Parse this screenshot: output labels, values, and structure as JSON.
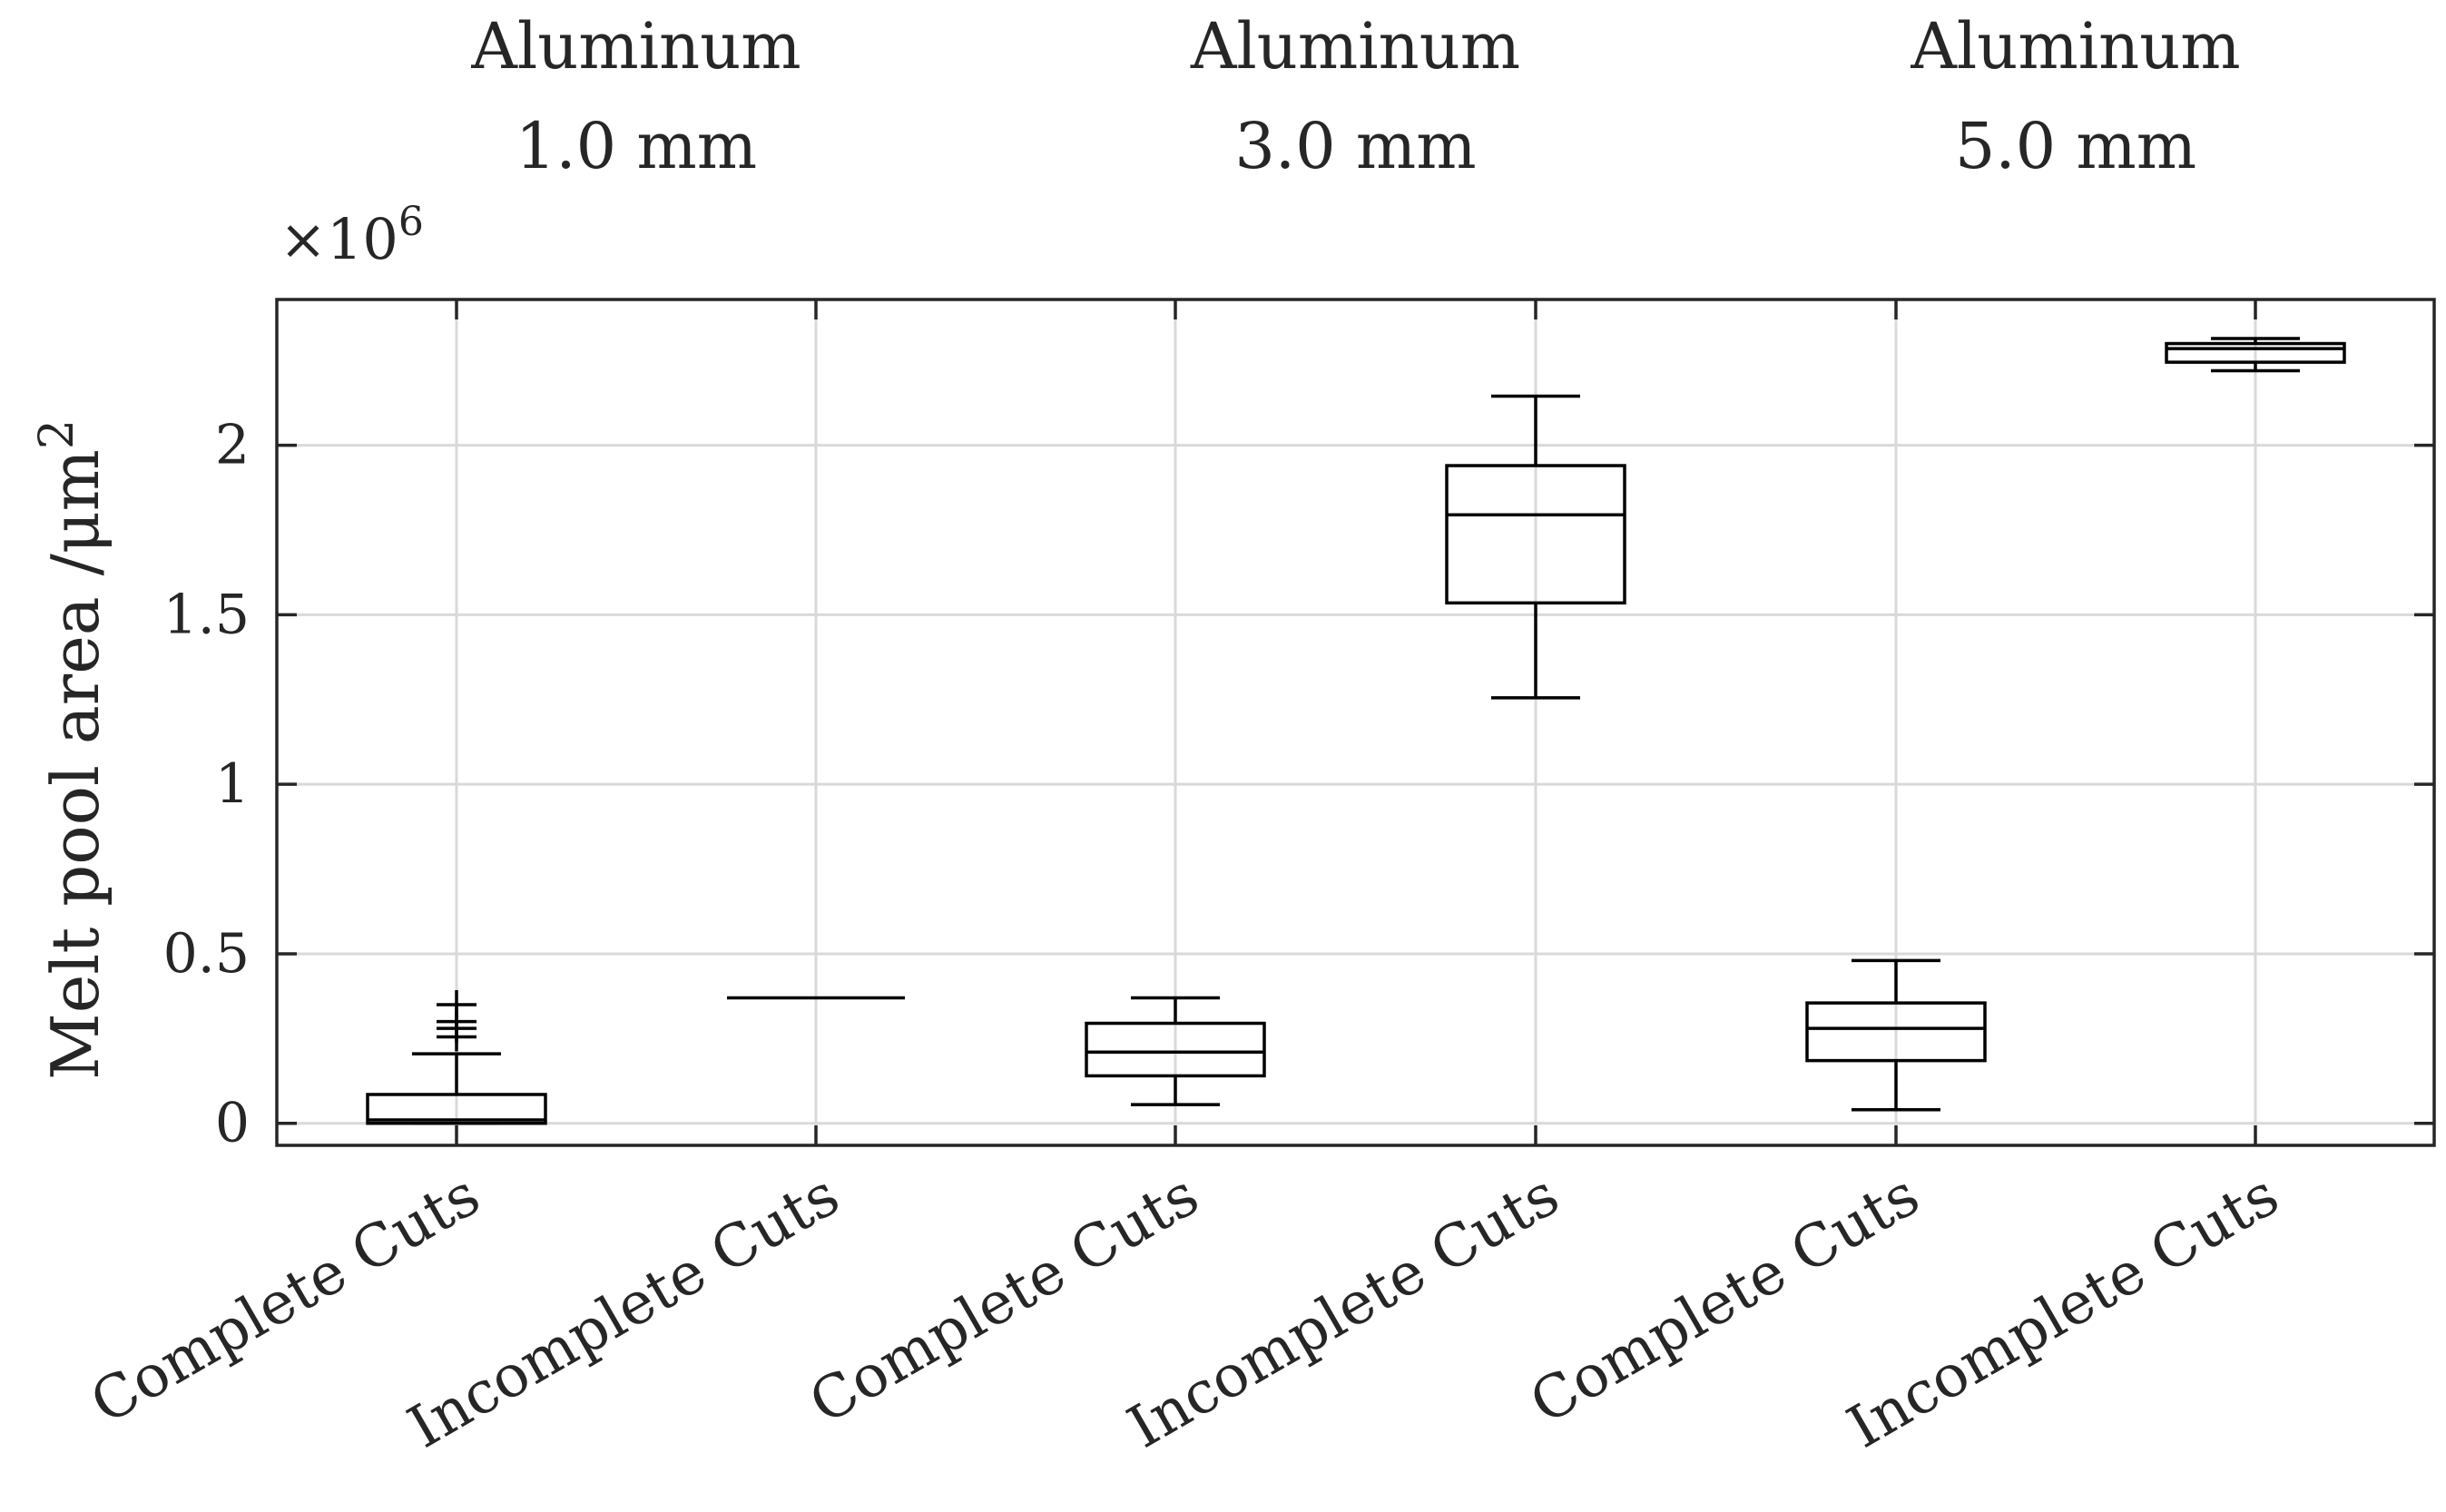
{
  "chart_data": {
    "type": "box",
    "title": "",
    "xlabel": "",
    "ylabel": "Melt pool area /μm",
    "ylabel_superscript": "2",
    "exponent_label": "×10",
    "exponent_superscript": "6",
    "ylim": [
      -0.065,
      2.43
    ],
    "yticks": [
      0,
      0.5,
      1,
      1.5,
      2
    ],
    "ytick_labels": [
      "0",
      "0.5",
      "1",
      "1.5",
      "2"
    ],
    "grid": true,
    "groups": [
      {
        "line1": "Aluminum",
        "line2": "1.0 mm"
      },
      {
        "line1": "Aluminum",
        "line2": "3.0 mm"
      },
      {
        "line1": "Aluminum",
        "line2": "5.0 mm"
      }
    ],
    "categories": [
      "Complete Cuts",
      "Incomplete Cuts",
      "Complete Cuts",
      "Incomplete Cuts",
      "Complete Cuts",
      "Incomplete Cuts"
    ],
    "boxes": [
      {
        "min": 0.0,
        "q1": 0.0,
        "median": 0.01,
        "q3": 0.085,
        "max": 0.205,
        "outliers": [
          0.255,
          0.28,
          0.3,
          0.35
        ]
      },
      {
        "min": 0.37,
        "q1": 0.37,
        "median": 0.37,
        "q3": 0.37,
        "max": 0.37,
        "outliers": []
      },
      {
        "min": 0.055,
        "q1": 0.14,
        "median": 0.21,
        "q3": 0.295,
        "max": 0.37,
        "outliers": []
      },
      {
        "min": 1.255,
        "q1": 1.535,
        "median": 1.795,
        "q3": 1.94,
        "max": 2.145,
        "outliers": []
      },
      {
        "min": 0.04,
        "q1": 0.185,
        "median": 0.28,
        "q3": 0.355,
        "max": 0.48,
        "outliers": []
      },
      {
        "min": 2.22,
        "q1": 2.245,
        "median": 2.285,
        "q3": 2.3,
        "max": 2.315,
        "outliers": []
      }
    ]
  }
}
